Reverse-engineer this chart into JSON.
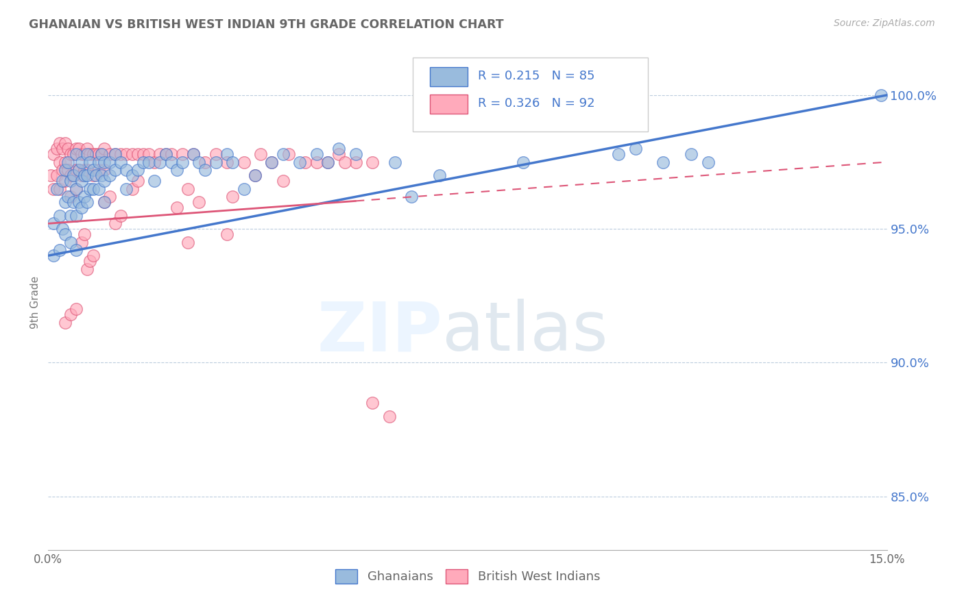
{
  "title": "GHANAIAN VS BRITISH WEST INDIAN 9TH GRADE CORRELATION CHART",
  "source_text": "Source: ZipAtlas.com",
  "ylabel": "9th Grade",
  "xlim": [
    0.0,
    15.0
  ],
  "ylim": [
    83.0,
    101.5
  ],
  "ytick_labels": [
    "85.0%",
    "90.0%",
    "95.0%",
    "100.0%"
  ],
  "ytick_values": [
    85.0,
    90.0,
    95.0,
    100.0
  ],
  "legend_blue_r": "R = 0.215",
  "legend_blue_n": "N = 85",
  "legend_pink_r": "R = 0.326",
  "legend_pink_n": "N = 92",
  "blue_color": "#99BBDD",
  "pink_color": "#FFAABB",
  "blue_line_color": "#4477CC",
  "pink_line_color": "#DD5577",
  "blue_reg_x0": 0.0,
  "blue_reg_y0": 94.0,
  "blue_reg_x1": 15.0,
  "blue_reg_y1": 100.0,
  "pink_reg_x0": 0.0,
  "pink_reg_y0": 95.2,
  "pink_reg_x1": 15.0,
  "pink_reg_y1": 97.5,
  "pink_reg_solid_x1": 5.5,
  "ghanaian_x": [
    0.1,
    0.1,
    0.15,
    0.2,
    0.2,
    0.25,
    0.25,
    0.3,
    0.3,
    0.3,
    0.35,
    0.35,
    0.4,
    0.4,
    0.4,
    0.45,
    0.45,
    0.5,
    0.5,
    0.5,
    0.5,
    0.55,
    0.55,
    0.6,
    0.6,
    0.6,
    0.65,
    0.65,
    0.7,
    0.7,
    0.7,
    0.75,
    0.75,
    0.8,
    0.8,
    0.85,
    0.9,
    0.9,
    0.95,
    0.95,
    1.0,
    1.0,
    1.0,
    1.1,
    1.1,
    1.2,
    1.2,
    1.3,
    1.4,
    1.4,
    1.5,
    1.6,
    1.7,
    1.8,
    1.9,
    2.0,
    2.1,
    2.2,
    2.3,
    2.4,
    2.6,
    2.7,
    2.8,
    3.0,
    3.2,
    3.3,
    3.5,
    3.7,
    4.0,
    4.2,
    4.5,
    4.8,
    5.0,
    5.2,
    5.5,
    6.2,
    6.5,
    7.0,
    8.5,
    10.2,
    10.5,
    11.0,
    11.5,
    11.8,
    14.9
  ],
  "ghanaian_y": [
    95.2,
    94.0,
    96.5,
    95.5,
    94.2,
    96.8,
    95.0,
    97.2,
    96.0,
    94.8,
    97.5,
    96.2,
    96.8,
    95.5,
    94.5,
    97.0,
    96.0,
    97.8,
    96.5,
    95.5,
    94.2,
    97.2,
    96.0,
    97.5,
    96.8,
    95.8,
    97.0,
    96.2,
    97.8,
    97.0,
    96.0,
    97.5,
    96.5,
    97.2,
    96.5,
    97.0,
    97.5,
    96.5,
    97.8,
    97.0,
    97.5,
    96.8,
    96.0,
    97.5,
    97.0,
    97.8,
    97.2,
    97.5,
    97.2,
    96.5,
    97.0,
    97.2,
    97.5,
    97.5,
    96.8,
    97.5,
    97.8,
    97.5,
    97.2,
    97.5,
    97.8,
    97.5,
    97.2,
    97.5,
    97.8,
    97.5,
    96.5,
    97.0,
    97.5,
    97.8,
    97.5,
    97.8,
    97.5,
    98.0,
    97.8,
    97.5,
    96.2,
    97.0,
    97.5,
    97.8,
    98.0,
    97.5,
    97.8,
    97.5,
    100.0
  ],
  "bwi_x": [
    0.05,
    0.1,
    0.1,
    0.15,
    0.15,
    0.2,
    0.2,
    0.2,
    0.25,
    0.25,
    0.3,
    0.3,
    0.3,
    0.35,
    0.35,
    0.4,
    0.4,
    0.4,
    0.45,
    0.45,
    0.5,
    0.5,
    0.5,
    0.55,
    0.55,
    0.6,
    0.6,
    0.65,
    0.65,
    0.7,
    0.7,
    0.75,
    0.8,
    0.8,
    0.85,
    0.9,
    0.9,
    0.95,
    1.0,
    1.0,
    1.1,
    1.2,
    1.3,
    1.4,
    1.5,
    1.6,
    1.7,
    1.8,
    1.9,
    2.0,
    2.1,
    2.2,
    2.4,
    2.6,
    2.8,
    3.0,
    3.2,
    3.5,
    3.8,
    4.0,
    4.3,
    4.6,
    5.0,
    5.2,
    5.5,
    5.8,
    4.2,
    4.8,
    5.3,
    3.3,
    3.7,
    2.3,
    2.5,
    2.7,
    0.7,
    0.75,
    0.8,
    1.2,
    1.3,
    0.6,
    0.65,
    1.0,
    1.1,
    1.5,
    1.6,
    2.5,
    3.2,
    0.3,
    0.4,
    0.5,
    5.8,
    6.1
  ],
  "bwi_y": [
    97.0,
    97.8,
    96.5,
    98.0,
    97.0,
    98.2,
    97.5,
    96.5,
    98.0,
    97.2,
    98.2,
    97.5,
    96.8,
    98.0,
    97.2,
    97.8,
    97.0,
    96.2,
    97.8,
    97.0,
    98.0,
    97.2,
    96.5,
    98.0,
    97.2,
    97.8,
    97.0,
    97.8,
    97.2,
    98.0,
    97.2,
    97.8,
    97.8,
    97.0,
    97.8,
    97.8,
    97.2,
    97.8,
    98.0,
    97.2,
    97.8,
    97.8,
    97.8,
    97.8,
    97.8,
    97.8,
    97.8,
    97.8,
    97.5,
    97.8,
    97.8,
    97.8,
    97.8,
    97.8,
    97.5,
    97.8,
    97.5,
    97.5,
    97.8,
    97.5,
    97.8,
    97.5,
    97.5,
    97.8,
    97.5,
    97.5,
    96.8,
    97.5,
    97.5,
    96.2,
    97.0,
    95.8,
    96.5,
    96.0,
    93.5,
    93.8,
    94.0,
    95.2,
    95.5,
    94.5,
    94.8,
    96.0,
    96.2,
    96.5,
    96.8,
    94.5,
    94.8,
    91.5,
    91.8,
    92.0,
    88.5,
    88.0
  ],
  "watermark_zip": "ZIP",
  "watermark_atlas": "atlas"
}
